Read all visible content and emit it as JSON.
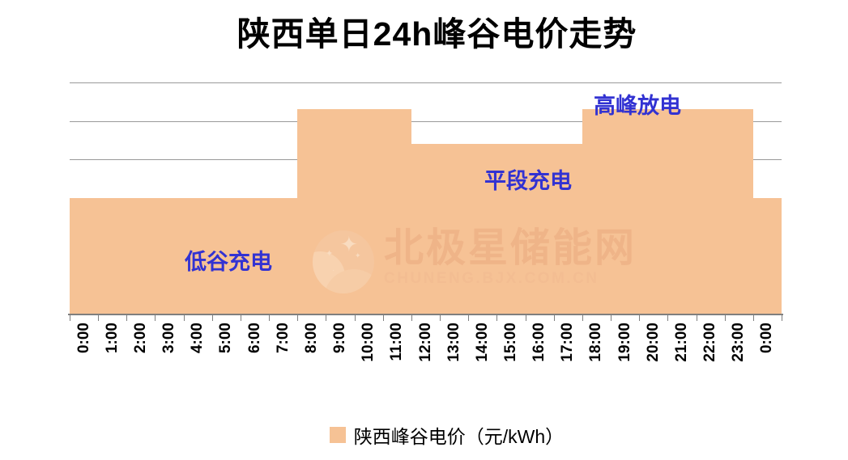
{
  "title": "陕西单日24h峰谷电价走势",
  "legend": {
    "label": "陕西峰谷电价（元/kWh）"
  },
  "annotations": {
    "valley": "低谷充电",
    "flat": "平段充电",
    "peak": "高峰放电"
  },
  "watermark": {
    "logo": "moon-stars-logo",
    "text": "北极星储能网",
    "subtext": "CHUNENG.BJX.COM.CN"
  },
  "colors": {
    "series_fill": "#F6C295",
    "gridline": "#999999",
    "axis_line": "#7F7F7F",
    "annotation_text": "#3232D2",
    "title_text": "#000000",
    "watermark_text": "#EFB488",
    "watermark_subtext": "#F3BD92",
    "watermark_logo": "#F5C69E"
  },
  "chart_data": {
    "type": "area",
    "title": "陕西单日24h峰谷电价走势",
    "series_name": "陕西峰谷电价（元/kWh）",
    "unit": "元/kWh",
    "categories": [
      "0:00",
      "1:00",
      "2:00",
      "3:00",
      "4:00",
      "5:00",
      "6:00",
      "7:00",
      "8:00",
      "9:00",
      "10:00",
      "11:00",
      "12:00",
      "13:00",
      "14:00",
      "15:00",
      "16:00",
      "17:00",
      "18:00",
      "19:00",
      "20:00",
      "21:00",
      "22:00",
      "23:00",
      "0:00"
    ],
    "values": [
      0.3,
      0.3,
      0.3,
      0.3,
      0.3,
      0.3,
      0.3,
      0.3,
      0.53,
      0.53,
      0.53,
      0.53,
      0.44,
      0.44,
      0.44,
      0.44,
      0.44,
      0.44,
      0.53,
      0.53,
      0.53,
      0.53,
      0.53,
      0.53,
      0.3
    ],
    "ylim": [
      0,
      0.6
    ],
    "gridline_step": 0.1,
    "y_axis_labels_visible": false,
    "x_labels_rotation_deg": 90,
    "legend_position": "bottom",
    "grid": "horizontal",
    "price_levels": {
      "valley": 0.3,
      "flat": 0.44,
      "peak": 0.53
    },
    "periods": [
      {
        "label": "低谷充电",
        "range": "0:00-7:00",
        "value": 0.3
      },
      {
        "label": "高峰放电",
        "range": "8:00-11:00",
        "value": 0.53
      },
      {
        "label": "平段充电",
        "range": "12:00-17:00",
        "value": 0.44
      },
      {
        "label": "高峰放电",
        "range": "18:00-23:00",
        "value": 0.53
      },
      {
        "label": "低谷充电",
        "range": "0:00",
        "value": 0.3
      }
    ]
  }
}
